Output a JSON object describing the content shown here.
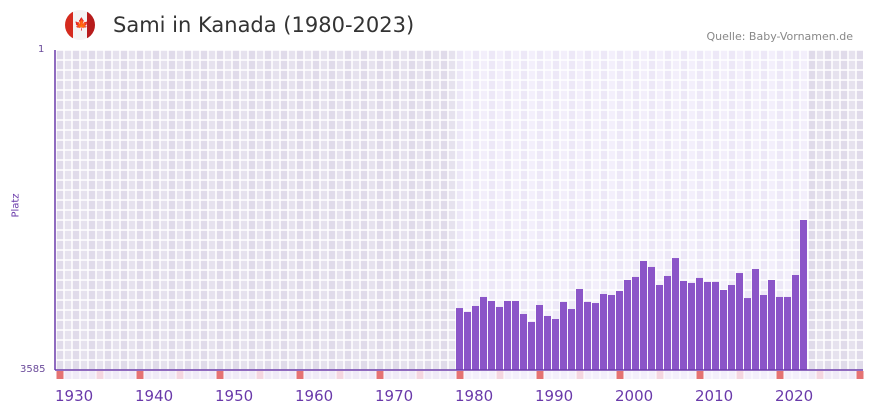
{
  "header": {
    "title": "Sami in Kanada (1980-2023)",
    "source": "Quelle: Baby-Vornamen.de",
    "flag_icon": "canada-flag-icon"
  },
  "chart_data": {
    "type": "bar",
    "title": "Sami in Kanada (1980-2023)",
    "xlabel": "",
    "ylabel": "Platz",
    "y_inverted": true,
    "ylim": [
      1,
      3585
    ],
    "xlim": [
      1930,
      2031
    ],
    "y_ticks": [
      "1",
      "3585"
    ],
    "x_ticks": [
      1930,
      1940,
      1950,
      1960,
      1970,
      1980,
      1990,
      2000,
      2010,
      2020
    ],
    "x": [
      1980,
      1981,
      1982,
      1983,
      1984,
      1985,
      1986,
      1987,
      1988,
      1989,
      1990,
      1991,
      1992,
      1993,
      1994,
      1995,
      1996,
      1997,
      1998,
      1999,
      2000,
      2001,
      2002,
      2003,
      2004,
      2005,
      2006,
      2007,
      2008,
      2009,
      2010,
      2011,
      2012,
      2013,
      2014,
      2015,
      2016,
      2017,
      2018,
      2019,
      2020,
      2021,
      2022,
      2023
    ],
    "values": [
      2891,
      2935,
      2868,
      2767,
      2812,
      2879,
      2812,
      2812,
      2958,
      3047,
      2857,
      2980,
      3014,
      2823,
      2902,
      2678,
      2823,
      2835,
      2734,
      2745,
      2700,
      2577,
      2543,
      2364,
      2431,
      2633,
      2532,
      2331,
      2588,
      2610,
      2554,
      2599,
      2599,
      2689,
      2633,
      2499,
      2779,
      2454,
      2745,
      2577,
      2767,
      2767,
      2521,
      1905
    ],
    "colors": {
      "bar": "#8b55c8",
      "axis": "#6a3aaa",
      "decade_marker": "#e57373",
      "half_decade_marker": "#f4d6e0"
    }
  }
}
